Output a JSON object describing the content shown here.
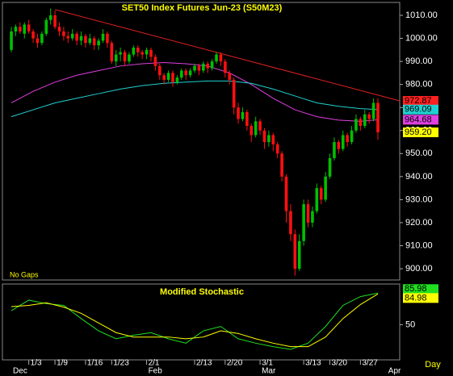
{
  "chart_data": [
    {
      "type": "candlestick",
      "title": "SET50  Index  Futures  Jun-23  (S50M23)",
      "note": "No Gaps",
      "xlim": [
        -2.6,
        89
      ],
      "xticks": [
        {
          "value": 4,
          "label": "1/3"
        },
        {
          "value": 10,
          "label": "1/9"
        },
        {
          "value": 17,
          "label": "1/16"
        },
        {
          "value": 23,
          "label": "1/23"
        },
        {
          "value": 31,
          "label": "2/1"
        },
        {
          "value": 42,
          "label": "2/13"
        },
        {
          "value": 49,
          "label": "2/20"
        },
        {
          "value": 57,
          "label": "3/1"
        },
        {
          "value": 67,
          "label": "3/13"
        },
        {
          "value": 73,
          "label": "3/20"
        },
        {
          "value": 80,
          "label": "3/27"
        }
      ],
      "months": [
        {
          "value": 0,
          "label": "Dec"
        },
        {
          "value": 31,
          "label": "Feb"
        },
        {
          "value": 57,
          "label": "Mar"
        },
        {
          "value": 86,
          "label": "Apr"
        }
      ],
      "period": "Day",
      "ylim": [
        895,
        1015
      ],
      "yticks": [
        {
          "value": 900,
          "label": "900.00"
        },
        {
          "value": 910,
          "label": "910.00"
        },
        {
          "value": 920,
          "label": "920.00"
        },
        {
          "value": 930,
          "label": "930.00"
        },
        {
          "value": 940,
          "label": "940.00"
        },
        {
          "value": 950,
          "label": "950.00"
        },
        {
          "value": 960,
          "label": "960.00"
        },
        {
          "value": 970,
          "label": "970.00"
        },
        {
          "value": 980,
          "label": "980.00"
        },
        {
          "value": 990,
          "label": "990.00"
        },
        {
          "value": 1000,
          "label": "1000.00"
        },
        {
          "value": 1010,
          "label": "1010.00"
        }
      ],
      "up_color": "#00c000",
      "down_color": "#ff1010",
      "candles": [
        [
          995,
          1005,
          994,
          1003
        ],
        [
          1003,
          1006,
          1001,
          1005
        ],
        [
          1005,
          1007,
          1002,
          1003
        ],
        [
          1002,
          1007,
          1000,
          1006
        ],
        [
          1006,
          1008,
          1002,
          1003
        ],
        [
          1003,
          1004,
          998,
          1000
        ],
        [
          1000,
          1002,
          996,
          998
        ],
        [
          998,
          1003,
          997,
          1002
        ],
        [
          1002,
          1009,
          1001,
          1008
        ],
        [
          1008,
          1013,
          1006,
          1010
        ],
        [
          1010,
          1012,
          1004,
          1005
        ],
        [
          1005,
          1007,
          1001,
          1003
        ],
        [
          1003,
          1005,
          999,
          1001
        ],
        [
          1001,
          1003,
          998,
          1000
        ],
        [
          1000,
          1004,
          999,
          1002
        ],
        [
          1002,
          1003,
          997,
          999
        ],
        [
          999,
          1003,
          997,
          1001
        ],
        [
          1001,
          1002,
          996,
          998
        ],
        [
          998,
          1002,
          997,
          1000
        ],
        [
          1000,
          1001,
          995,
          997
        ],
        [
          997,
          1000,
          995,
          999
        ],
        [
          999,
          1004,
          998,
          1002
        ],
        [
          1002,
          1003,
          996,
          998
        ],
        [
          998,
          999,
          989,
          990
        ],
        [
          990,
          995,
          988,
          993
        ],
        [
          993,
          996,
          990,
          994
        ],
        [
          994,
          995,
          988,
          990
        ],
        [
          990,
          994,
          989,
          993
        ],
        [
          993,
          997,
          992,
          996
        ],
        [
          996,
          997,
          992,
          994
        ],
        [
          994,
          995,
          991,
          993
        ],
        [
          993,
          996,
          991,
          995
        ],
        [
          995,
          996,
          990,
          992
        ],
        [
          992,
          993,
          986,
          988
        ],
        [
          988,
          989,
          982,
          984
        ],
        [
          984,
          985,
          980,
          982
        ],
        [
          982,
          986,
          981,
          985
        ],
        [
          985,
          986,
          979,
          981
        ],
        [
          981,
          984,
          980,
          983
        ],
        [
          983,
          987,
          982,
          986
        ],
        [
          986,
          987,
          982,
          984
        ],
        [
          984,
          987,
          983,
          986
        ],
        [
          986,
          989,
          985,
          988
        ],
        [
          988,
          989,
          984,
          986
        ],
        [
          986,
          990,
          985,
          989
        ],
        [
          989,
          990,
          985,
          987
        ],
        [
          987,
          991,
          986,
          990
        ],
        [
          990,
          994,
          989,
          993
        ],
        [
          993,
          994,
          988,
          990
        ],
        [
          990,
          991,
          983,
          985
        ],
        [
          985,
          986,
          980,
          982
        ],
        [
          982,
          983,
          967,
          970
        ],
        [
          970,
          972,
          963,
          965
        ],
        [
          965,
          970,
          964,
          968
        ],
        [
          968,
          969,
          960,
          962
        ],
        [
          962,
          963,
          955,
          958
        ],
        [
          958,
          966,
          957,
          964
        ],
        [
          964,
          965,
          958,
          960
        ],
        [
          960,
          961,
          952,
          955
        ],
        [
          955,
          960,
          953,
          958
        ],
        [
          958,
          959,
          951,
          954
        ],
        [
          954,
          955,
          948,
          950
        ],
        [
          950,
          951,
          938,
          940
        ],
        [
          940,
          941,
          920,
          925
        ],
        [
          925,
          928,
          912,
          915
        ],
        [
          915,
          917,
          897,
          900
        ],
        [
          900,
          915,
          899,
          912
        ],
        [
          912,
          930,
          910,
          928
        ],
        [
          928,
          930,
          918,
          920
        ],
        [
          920,
          927,
          918,
          925
        ],
        [
          925,
          937,
          924,
          935
        ],
        [
          935,
          936,
          928,
          930
        ],
        [
          930,
          942,
          929,
          940
        ],
        [
          940,
          950,
          939,
          948
        ],
        [
          948,
          957,
          947,
          955
        ],
        [
          955,
          956,
          950,
          952
        ],
        [
          952,
          960,
          951,
          958
        ],
        [
          958,
          959,
          953,
          955
        ],
        [
          955,
          962,
          954,
          960
        ],
        [
          960,
          967,
          959,
          965
        ],
        [
          965,
          966,
          960,
          962
        ],
        [
          962,
          969,
          961,
          967
        ],
        [
          967,
          968,
          963,
          965
        ],
        [
          965,
          974,
          964,
          972
        ],
        [
          972,
          974,
          956,
          959.2
        ]
      ],
      "lines": [
        {
          "color": "#e040e0",
          "x": [
            0,
            5,
            10,
            15,
            20,
            25,
            30,
            35,
            40,
            45,
            50,
            55,
            60,
            65,
            70,
            75,
            80,
            84
          ],
          "values": [
            972,
            977,
            981,
            984,
            986,
            988,
            989,
            989.5,
            989,
            988,
            985,
            980,
            974,
            969,
            966,
            964.5,
            964,
            964.68
          ]
        },
        {
          "color": "#20d0d0",
          "x": [
            0,
            5,
            10,
            15,
            20,
            25,
            30,
            35,
            40,
            45,
            50,
            55,
            60,
            65,
            70,
            75,
            80,
            84
          ],
          "values": [
            966,
            969,
            972,
            974,
            976,
            978,
            979.5,
            980.5,
            981,
            981.5,
            981.5,
            980.5,
            978,
            975,
            972,
            970.5,
            969.5,
            969.09
          ]
        },
        {
          "color": "#e02020",
          "x": [
            10,
            89
          ],
          "values": [
            1012.5,
            972.87
          ]
        }
      ],
      "price_tags": [
        {
          "value": 972.87,
          "color": "#ff2020"
        },
        {
          "value": 969.09,
          "color": "#20d0d0"
        },
        {
          "value": 964.68,
          "color": "#e040e0"
        },
        {
          "value": {
            "value": 959.2,
            "label": "959.20"
          },
          "color": "#ffff00"
        }
      ]
    },
    {
      "type": "line",
      "title": "Modified  Stochastic",
      "xlim": [
        -2.6,
        89
      ],
      "ylim": [
        10,
        100
      ],
      "yticks": [
        50
      ],
      "series": [
        {
          "color": "#20e020",
          "x": [
            0,
            4,
            8,
            12,
            16,
            20,
            24,
            28,
            32,
            36,
            40,
            44,
            48,
            52,
            56,
            60,
            64,
            68,
            72,
            76,
            80,
            84
          ],
          "values": [
            66,
            78,
            74,
            72,
            57,
            43,
            34,
            38,
            41,
            34,
            29,
            43,
            48,
            34,
            29,
            25,
            22,
            29,
            48,
            72,
            82,
            85.98
          ]
        },
        {
          "color": "#ffff00",
          "x": [
            0,
            4,
            8,
            12,
            16,
            20,
            24,
            28,
            32,
            36,
            40,
            44,
            48,
            52,
            56,
            60,
            64,
            68,
            72,
            76,
            80,
            84
          ],
          "values": [
            70.6,
            72,
            75,
            70,
            63,
            52,
            41,
            36,
            36,
            36,
            34,
            36,
            43,
            40,
            34,
            29,
            25,
            25,
            36,
            57,
            73,
            84.98
          ]
        }
      ]
    }
  ]
}
